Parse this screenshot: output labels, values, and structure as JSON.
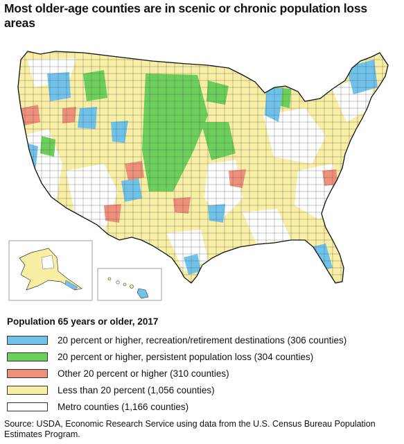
{
  "title": "Most older-age counties are in scenic or chronic population loss areas",
  "legend": {
    "title": "Population 65 years or older, 2017",
    "items": [
      {
        "label": "20 percent or higher, recreation/retirement destinations (306 counties)",
        "color": "#6fc3ea"
      },
      {
        "label": "20 percent or higher, persistent population loss (304 counties)",
        "color": "#6bd05a"
      },
      {
        "label": "Other 20 percent or higher (310 counties)",
        "color": "#f0907a"
      },
      {
        "label": "Less than 20 percent (1,056 counties)",
        "color": "#f8efa4"
      },
      {
        "label": "Metro counties (1,166 counties)",
        "color": "#ffffff"
      }
    ]
  },
  "source": "Source: USDA, Economic Research Service using data from the U.S. Census Bureau Population Estimates Program."
}
